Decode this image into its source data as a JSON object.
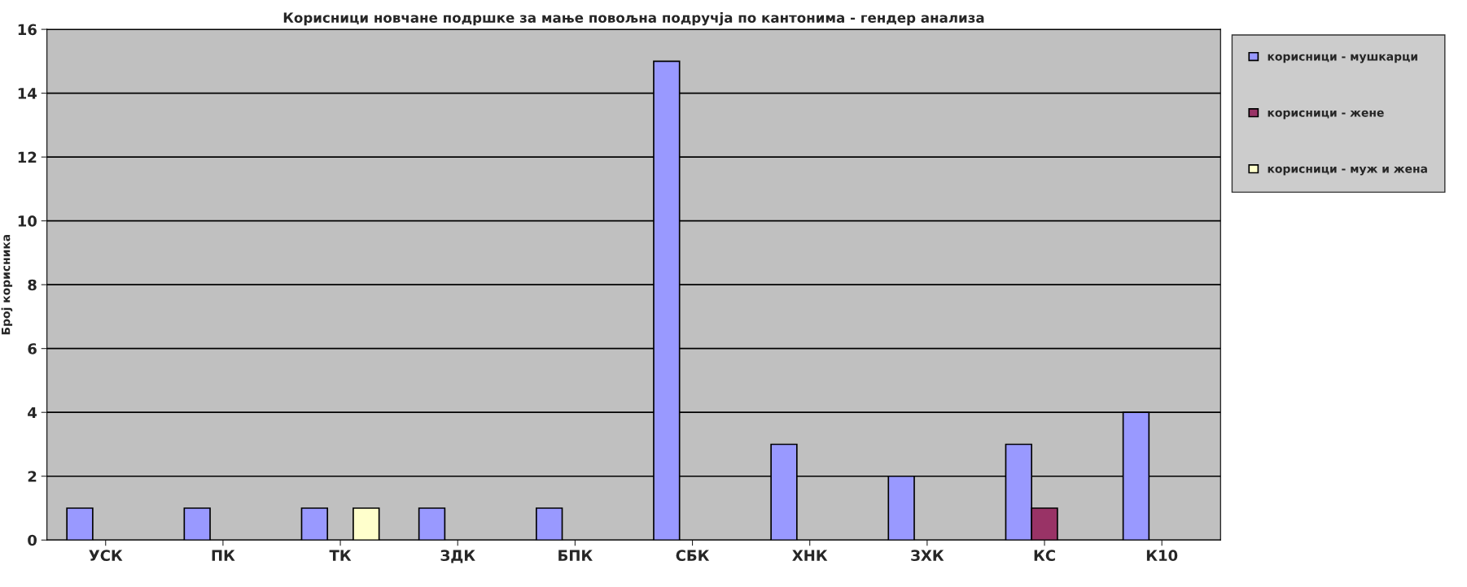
{
  "chart_data": {
    "type": "bar",
    "title": "Корисници новчане подршке за мање повољна подручја по кантонима - гендер анализа",
    "ylabel": "Број корисника",
    "categories": [
      "УСК",
      "ПК",
      "ТК",
      "ЗДК",
      "БПК",
      "СБК",
      "ХНК",
      "ЗХК",
      "КС",
      "К10"
    ],
    "series": [
      {
        "name": "корисници - мушкарци",
        "color": "#9999ff",
        "values": [
          1,
          1,
          1,
          1,
          1,
          15,
          3,
          2,
          3,
          4
        ]
      },
      {
        "name": "корисници - жене",
        "color": "#993366",
        "values": [
          null,
          null,
          null,
          null,
          null,
          null,
          null,
          null,
          1,
          null
        ]
      },
      {
        "name": "корисници - муж и жена",
        "color": "#ffffcc",
        "values": [
          null,
          null,
          1,
          null,
          null,
          null,
          null,
          null,
          null,
          null
        ]
      }
    ],
    "ylim": [
      0,
      16
    ],
    "yticks": [
      0,
      2,
      4,
      6,
      8,
      10,
      12,
      14,
      16
    ],
    "grid": "y",
    "legend": "top right"
  }
}
